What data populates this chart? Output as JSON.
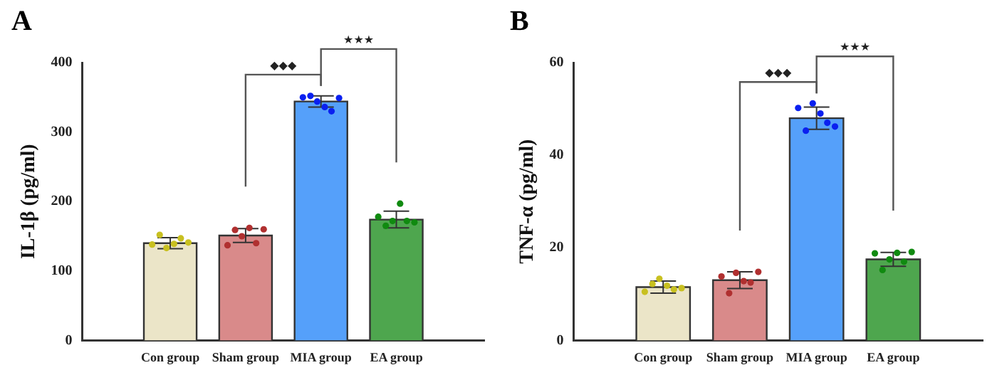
{
  "chart_data": [
    {
      "type": "bar",
      "title": "A",
      "ylabel": "IL-1β (pg/ml)",
      "categories": [
        "Con group",
        "Sham group",
        "MIA group",
        "EA group"
      ],
      "ylim": [
        0,
        400
      ],
      "yticks": [
        0,
        100,
        200,
        300,
        400
      ],
      "grid": false,
      "legend": false,
      "annotations": [
        "◆◆◆",
        "★★★"
      ],
      "series": [
        {
          "type": "bar",
          "values": [
            140,
            151,
            344,
            174
          ],
          "colors": [
            "#ebe5c8",
            "#d98a8a",
            "#55a0fa",
            "#4ea64e"
          ],
          "errors": [
            8,
            10,
            8,
            12
          ]
        },
        {
          "type": "scatter",
          "marker": "circle",
          "x": [
            "Con group",
            "Con group",
            "Con group",
            "Con group",
            "Con group",
            "Con group",
            "Sham group",
            "Sham group",
            "Sham group",
            "Sham group",
            "Sham group",
            "Sham group",
            "MIA group",
            "MIA group",
            "MIA group",
            "MIA group",
            "MIA group",
            "MIA group",
            "EA group",
            "EA group",
            "EA group",
            "EA group",
            "EA group",
            "EA group"
          ],
          "values": [
            138,
            152,
            133,
            139,
            147,
            141,
            137,
            159,
            150,
            162,
            140,
            160,
            350,
            352,
            344,
            336,
            330,
            349,
            178,
            165,
            172,
            197,
            172,
            170
          ],
          "colors": [
            "#c8c020",
            "#c8c020",
            "#c8c020",
            "#c8c020",
            "#c8c020",
            "#c8c020",
            "#b03030",
            "#b03030",
            "#b03030",
            "#b03030",
            "#b03030",
            "#b03030",
            "#0a20f0",
            "#0a20f0",
            "#0a20f0",
            "#0a20f0",
            "#0a20f0",
            "#0a20f0",
            "#108a10",
            "#108a10",
            "#108a10",
            "#108a10",
            "#108a10",
            "#108a10"
          ]
        }
      ]
    },
    {
      "type": "bar",
      "title": "B",
      "ylabel": "TNF-α (pg/ml)",
      "categories": [
        "Con group",
        "Sham group",
        "MIA group",
        "EA group"
      ],
      "ylim": [
        0,
        60
      ],
      "yticks": [
        0,
        20,
        40,
        60
      ],
      "grid": false,
      "legend": false,
      "annotations": [
        "◆◆◆",
        "★★★"
      ],
      "series": [
        {
          "type": "bar",
          "values": [
            11.5,
            13,
            48,
            17.5
          ],
          "colors": [
            "#ebe5c8",
            "#d98a8a",
            "#55a0fa",
            "#4ea64e"
          ],
          "errors": [
            1.3,
            1.8,
            2.4,
            1.5
          ]
        },
        {
          "type": "scatter",
          "marker": "circle",
          "x": [
            "Con group",
            "Con group",
            "Con group",
            "Con group",
            "Con group",
            "Con group",
            "Sham group",
            "Sham group",
            "Sham group",
            "Sham group",
            "Sham group",
            "Sham group",
            "MIA group",
            "MIA group",
            "MIA group",
            "MIA group",
            "MIA group",
            "MIA group",
            "EA group",
            "EA group",
            "EA group",
            "EA group",
            "EA group",
            "EA group"
          ],
          "values": [
            10.5,
            12.2,
            13.3,
            11.8,
            11.0,
            11.3,
            13.8,
            10.2,
            14.6,
            12.8,
            12.5,
            14.8,
            50.2,
            45.3,
            51.2,
            49.0,
            47.0,
            46.2,
            18.8,
            15.2,
            17.5,
            18.9,
            17.0,
            19.1
          ],
          "colors": [
            "#c8c020",
            "#c8c020",
            "#c8c020",
            "#c8c020",
            "#c8c020",
            "#c8c020",
            "#b03030",
            "#b03030",
            "#b03030",
            "#b03030",
            "#b03030",
            "#b03030",
            "#0a20f0",
            "#0a20f0",
            "#0a20f0",
            "#0a20f0",
            "#0a20f0",
            "#0a20f0",
            "#108a10",
            "#108a10",
            "#108a10",
            "#108a10",
            "#108a10",
            "#108a10"
          ]
        }
      ]
    }
  ]
}
